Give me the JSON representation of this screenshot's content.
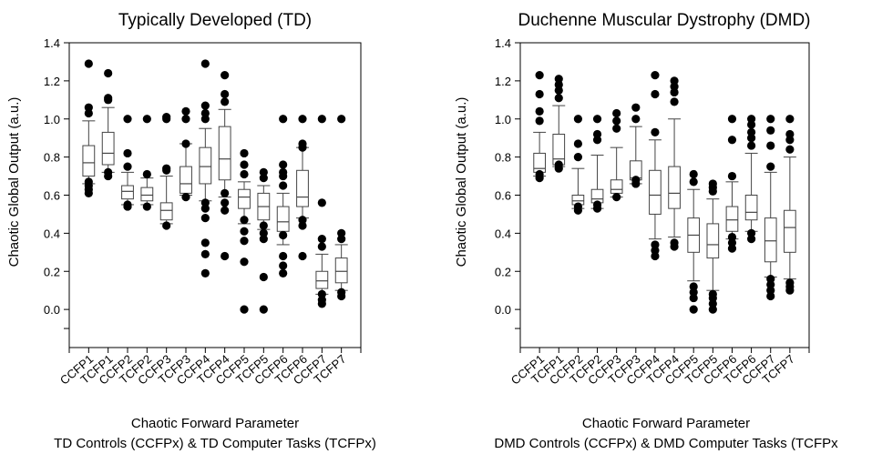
{
  "chart_data": [
    {
      "type": "box",
      "title": "Typically Developed (TD)",
      "ylabel": "Chaotic Global Output (a.u.)",
      "xlabel_line1": "Chaotic Forward Parameter",
      "xlabel_line2": "TD Controls (CCFPx) & TD Computer Tasks (TCFPx)",
      "ylim": [
        -0.2,
        1.4
      ],
      "yticks": [
        "0.0",
        "0.2",
        "0.4",
        "0.6",
        "0.8",
        "1.0",
        "1.2",
        "1.4"
      ],
      "categories": [
        "CCFP1",
        "TCFP1",
        "CCFP2",
        "TCFP2",
        "CCFP3",
        "TCFP3",
        "CCFP4",
        "TCFP4",
        "CCFP5",
        "TCFP5",
        "CCFP6",
        "TCFP6",
        "CCFP7",
        "TCFP7"
      ],
      "boxes": [
        {
          "wlo": 0.66,
          "q1": 0.7,
          "med": 0.77,
          "q3": 0.86,
          "whi": 0.99,
          "out": [
            0.61,
            0.63,
            0.65,
            0.67,
            1.03,
            1.06,
            1.29
          ]
        },
        {
          "wlo": 0.72,
          "q1": 0.76,
          "med": 0.82,
          "q3": 0.93,
          "whi": 1.06,
          "out": [
            0.7,
            0.72,
            1.1,
            1.11,
            1.24
          ]
        },
        {
          "wlo": 0.55,
          "q1": 0.58,
          "med": 0.62,
          "q3": 0.65,
          "whi": 0.72,
          "out": [
            0.54,
            0.55,
            0.75,
            0.82,
            1.0
          ]
        },
        {
          "wlo": 0.55,
          "q1": 0.57,
          "med": 0.6,
          "q3": 0.64,
          "whi": 0.69,
          "out": [
            0.54,
            0.71,
            1.0
          ]
        },
        {
          "wlo": 0.45,
          "q1": 0.47,
          "med": 0.52,
          "q3": 0.56,
          "whi": 0.7,
          "out": [
            0.44,
            0.73,
            0.74,
            1.0,
            1.01
          ]
        },
        {
          "wlo": 0.6,
          "q1": 0.61,
          "med": 0.66,
          "q3": 0.75,
          "whi": 0.87,
          "out": [
            0.59,
            0.87,
            1.0,
            1.04
          ]
        },
        {
          "wlo": 0.57,
          "q1": 0.66,
          "med": 0.75,
          "q3": 0.85,
          "whi": 0.95,
          "out": [
            0.19,
            0.29,
            0.35,
            0.48,
            0.53,
            0.56,
            1.0,
            1.03,
            1.07,
            1.29
          ]
        },
        {
          "wlo": 0.59,
          "q1": 0.68,
          "med": 0.79,
          "q3": 0.96,
          "whi": 1.05,
          "out": [
            0.28,
            0.52,
            0.56,
            0.61,
            1.09,
            1.13,
            1.23
          ]
        },
        {
          "wlo": 0.45,
          "q1": 0.53,
          "med": 0.59,
          "q3": 0.63,
          "whi": 0.67,
          "out": [
            0.0,
            0.25,
            0.36,
            0.41,
            0.47,
            0.71,
            0.76,
            0.82
          ]
        },
        {
          "wlo": 0.42,
          "q1": 0.47,
          "med": 0.54,
          "q3": 0.61,
          "whi": 0.65,
          "out": [
            0.0,
            0.17,
            0.37,
            0.4,
            0.44,
            0.69,
            0.72
          ]
        },
        {
          "wlo": 0.34,
          "q1": 0.41,
          "med": 0.46,
          "q3": 0.54,
          "whi": 0.61,
          "out": [
            0.19,
            0.23,
            0.28,
            0.39,
            0.65,
            0.7,
            0.72,
            0.76,
            1.0
          ]
        },
        {
          "wlo": 0.48,
          "q1": 0.54,
          "med": 0.59,
          "q3": 0.73,
          "whi": 0.85,
          "out": [
            0.28,
            0.44,
            0.47,
            0.85,
            0.87,
            1.0
          ]
        },
        {
          "wlo": 0.08,
          "q1": 0.11,
          "med": 0.15,
          "q3": 0.2,
          "whi": 0.29,
          "out": [
            0.03,
            0.05,
            0.08,
            0.33,
            0.37,
            0.56,
            1.0
          ]
        },
        {
          "wlo": 0.1,
          "q1": 0.14,
          "med": 0.2,
          "q3": 0.27,
          "whi": 0.34,
          "out": [
            0.07,
            0.09,
            0.37,
            0.4,
            1.0
          ]
        }
      ]
    },
    {
      "type": "box",
      "title": "Duchenne Muscular Dystrophy (DMD)",
      "ylabel": "Chaotic Global Output (a.u.)",
      "xlabel_line1": "Chaotic Forward Parameter",
      "xlabel_line2": "DMD Controls (CCFPx) & DMD Computer Tasks (TCFPx",
      "ylim": [
        -0.2,
        1.4
      ],
      "yticks": [
        "0.0",
        "0.2",
        "0.4",
        "0.6",
        "0.8",
        "1.0",
        "1.2",
        "1.4"
      ],
      "categories": [
        "CCFP1",
        "TCFP1",
        "CCFP2",
        "TCFP2",
        "CCFP3",
        "TCFP3",
        "CCFP4",
        "TCFP4",
        "CCFP5",
        "TCFP5",
        "CCFP6",
        "TCFP6",
        "CCFP7",
        "TCFP7"
      ],
      "boxes": [
        {
          "wlo": 0.7,
          "q1": 0.72,
          "med": 0.74,
          "q3": 0.82,
          "whi": 0.93,
          "out": [
            0.69,
            0.71,
            0.99,
            1.04,
            1.13,
            1.23
          ]
        },
        {
          "wlo": 0.75,
          "q1": 0.76,
          "med": 0.79,
          "q3": 0.92,
          "whi": 1.07,
          "out": [
            0.74,
            0.76,
            1.11,
            1.15,
            1.18,
            1.21
          ]
        },
        {
          "wlo": 0.53,
          "q1": 0.55,
          "med": 0.57,
          "q3": 0.6,
          "whi": 0.74,
          "out": [
            0.52,
            0.54,
            0.8,
            0.87,
            1.0
          ]
        },
        {
          "wlo": 0.53,
          "q1": 0.56,
          "med": 0.58,
          "q3": 0.63,
          "whi": 0.81,
          "out": [
            0.53,
            0.55,
            0.89,
            0.92,
            1.0
          ]
        },
        {
          "wlo": 0.59,
          "q1": 0.61,
          "med": 0.63,
          "q3": 0.68,
          "whi": 0.85,
          "out": [
            0.59,
            0.95,
            0.99,
            1.03
          ]
        },
        {
          "wlo": 0.66,
          "q1": 0.68,
          "med": 0.69,
          "q3": 0.78,
          "whi": 0.96,
          "out": [
            0.66,
            0.68,
            1.0,
            1.06
          ]
        },
        {
          "wlo": 0.37,
          "q1": 0.5,
          "med": 0.6,
          "q3": 0.73,
          "whi": 0.89,
          "out": [
            0.28,
            0.31,
            0.34,
            0.93,
            1.13,
            1.23
          ]
        },
        {
          "wlo": 0.38,
          "q1": 0.53,
          "med": 0.61,
          "q3": 0.75,
          "whi": 1.0,
          "out": [
            0.33,
            0.35,
            1.09,
            1.14,
            1.17,
            1.2
          ]
        },
        {
          "wlo": 0.15,
          "q1": 0.3,
          "med": 0.39,
          "q3": 0.48,
          "whi": 0.63,
          "out": [
            0.0,
            0.06,
            0.09,
            0.12,
            0.67,
            0.71
          ]
        },
        {
          "wlo": 0.1,
          "q1": 0.27,
          "med": 0.34,
          "q3": 0.45,
          "whi": 0.58,
          "out": [
            0.0,
            0.03,
            0.06,
            0.08,
            0.62,
            0.64,
            0.66
          ]
        },
        {
          "wlo": 0.37,
          "q1": 0.41,
          "med": 0.47,
          "q3": 0.54,
          "whi": 0.67,
          "out": [
            0.32,
            0.35,
            0.38,
            0.7,
            0.89,
            1.0
          ]
        },
        {
          "wlo": 0.41,
          "q1": 0.47,
          "med": 0.51,
          "q3": 0.6,
          "whi": 0.82,
          "out": [
            0.37,
            0.4,
            0.86,
            0.9,
            0.93,
            0.97,
            1.0
          ]
        },
        {
          "wlo": 0.17,
          "q1": 0.25,
          "med": 0.36,
          "q3": 0.48,
          "whi": 0.72,
          "out": [
            0.07,
            0.1,
            0.13,
            0.16,
            0.75,
            0.86,
            0.94,
            1.0
          ]
        },
        {
          "wlo": 0.16,
          "q1": 0.3,
          "med": 0.43,
          "q3": 0.52,
          "whi": 0.8,
          "out": [
            0.1,
            0.12,
            0.14,
            0.84,
            0.89,
            0.92,
            1.0
          ]
        }
      ]
    }
  ]
}
